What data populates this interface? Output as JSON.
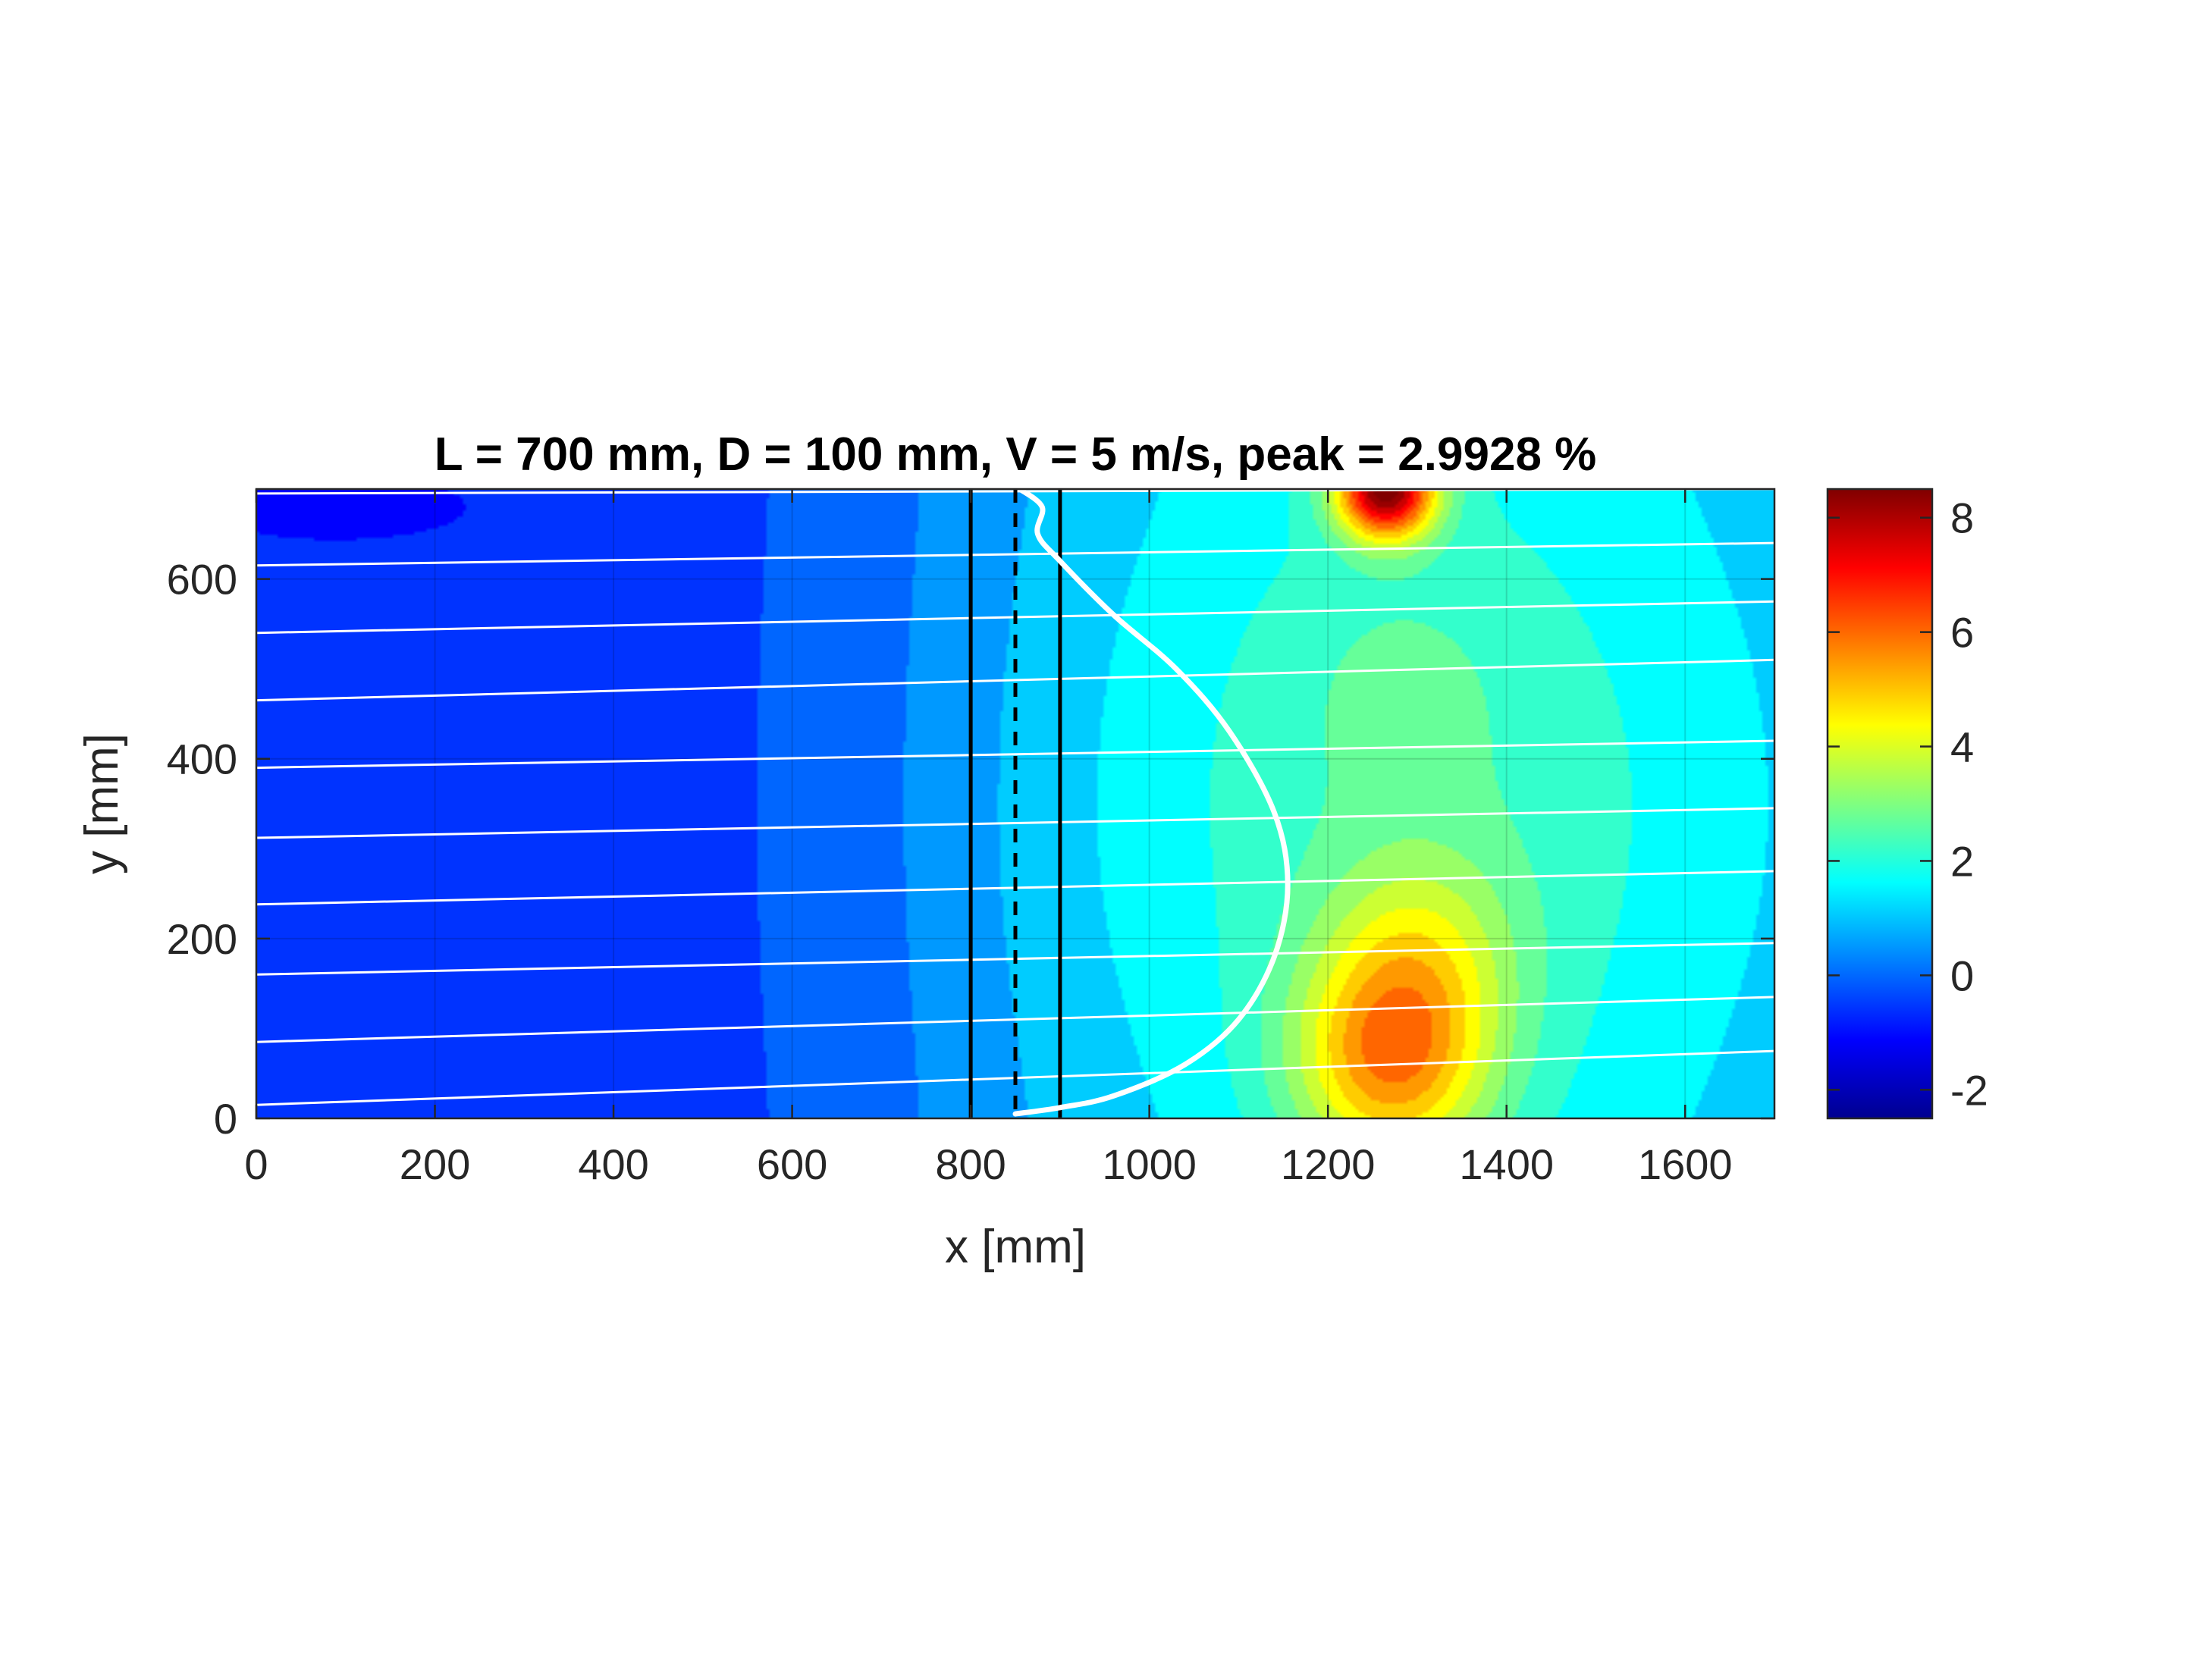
{
  "chart_data": {
    "type": "heatmap",
    "title": "L = 700 mm, D = 100 mm, V = 5 m/s, peak = 2.9928 %",
    "xlabel": "x [mm]",
    "ylabel": "y [mm]",
    "xlim": [
      0,
      1700
    ],
    "ylim": [
      0,
      700
    ],
    "xticks": [
      0,
      200,
      400,
      600,
      800,
      1000,
      1200,
      1400,
      1600
    ],
    "yticks": [
      0,
      200,
      400,
      600
    ],
    "grid": true,
    "colormap": "jet",
    "colorbar": {
      "range": [
        -2.5,
        8.5
      ],
      "ticks": [
        -2,
        0,
        2,
        4,
        6,
        8
      ],
      "location": "right"
    },
    "contour_field_estimate": {
      "background_value": 0.1,
      "left_region_value": -0.5,
      "hotspots": [
        {
          "x": 1265,
          "y": 700,
          "peak": 8.5
        },
        {
          "x": 1270,
          "y": 60,
          "peak": 5.0
        },
        {
          "x": 1300,
          "y": 180,
          "peak": 3.2
        },
        {
          "x": 1280,
          "y": 480,
          "peak": 1.9
        }
      ],
      "cold_spots": [
        {
          "x": 90,
          "y": 680,
          "value": -1.2
        }
      ]
    },
    "vertical_lines": [
      {
        "x": 800,
        "style": "solid",
        "color": "#000000"
      },
      {
        "x": 850,
        "style": "dashed",
        "color": "#000000"
      },
      {
        "x": 900,
        "style": "solid",
        "color": "#000000"
      }
    ],
    "profile_curve": {
      "color": "#ffffff",
      "points": [
        [
          855,
          700
        ],
        [
          880,
          680
        ],
        [
          875,
          650
        ],
        [
          900,
          620
        ],
        [
          960,
          560
        ],
        [
          1030,
          500
        ],
        [
          1090,
          430
        ],
        [
          1140,
          340
        ],
        [
          1155,
          260
        ],
        [
          1140,
          180
        ],
        [
          1100,
          110
        ],
        [
          1040,
          60
        ],
        [
          960,
          25
        ],
        [
          900,
          12
        ],
        [
          850,
          5
        ]
      ]
    },
    "streamlines": [
      {
        "x": [
          0,
          1700
        ],
        "y": [
          15,
          75
        ]
      },
      {
        "x": [
          0,
          1700
        ],
        "y": [
          85,
          135
        ]
      },
      {
        "x": [
          0,
          1700
        ],
        "y": [
          160,
          195
        ]
      },
      {
        "x": [
          0,
          1700
        ],
        "y": [
          238,
          275
        ]
      },
      {
        "x": [
          0,
          1700
        ],
        "y": [
          312,
          345
        ]
      },
      {
        "x": [
          0,
          1700
        ],
        "y": [
          390,
          420
        ]
      },
      {
        "x": [
          0,
          1700
        ],
        "y": [
          465,
          510
        ]
      },
      {
        "x": [
          0,
          1700
        ],
        "y": [
          540,
          575
        ]
      },
      {
        "x": [
          0,
          1700
        ],
        "y": [
          615,
          640
        ]
      },
      {
        "x": [
          0,
          1700
        ],
        "y": [
          695,
          700
        ]
      }
    ]
  }
}
